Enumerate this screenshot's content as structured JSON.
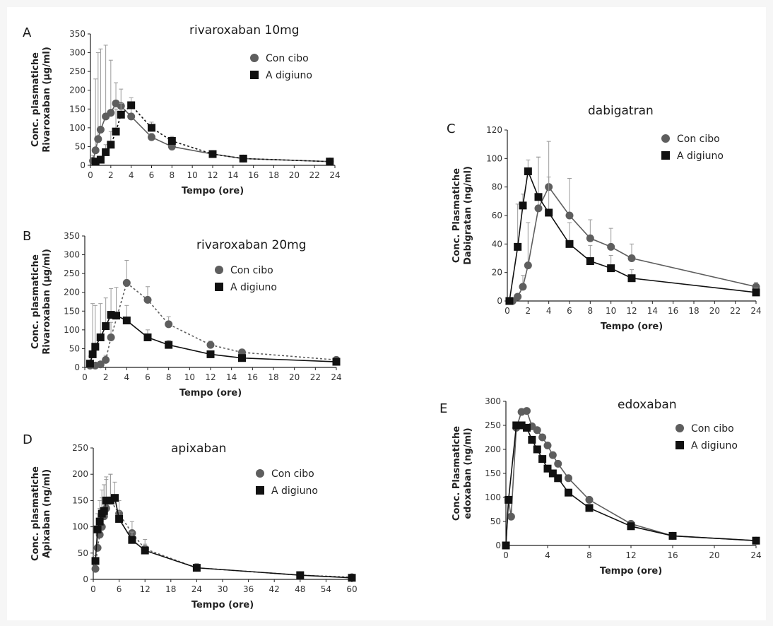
{
  "colors": {
    "con_cibo": "#5e5e5e",
    "a_digiuno": "#111111",
    "axis": "#222222",
    "errorbar": "#9a9a9a"
  },
  "chart_data": [
    {
      "panel": "A",
      "type": "line",
      "title": "rivaroxaban 10mg",
      "xlabel": "Tempo (ore)",
      "ylabel": [
        "Conc. plasmatiche",
        "Rivaroxaban (µg/ml)"
      ],
      "xlim": [
        0,
        24
      ],
      "ylim": [
        0,
        350
      ],
      "xticks": [
        0,
        2,
        4,
        6,
        8,
        10,
        12,
        14,
        16,
        18,
        20,
        22,
        24
      ],
      "yticks": [
        0,
        50,
        100,
        150,
        200,
        250,
        300,
        350
      ],
      "legend_position": "top-right",
      "series": [
        {
          "name": "Con cibo",
          "marker": "circle",
          "line": "solid",
          "x": [
            0.25,
            0.5,
            0.75,
            1,
            1.5,
            2,
            2.5,
            3,
            4,
            6,
            8,
            12,
            15,
            23.5
          ],
          "y": [
            12,
            40,
            70,
            95,
            130,
            140,
            165,
            158,
            130,
            75,
            50,
            30,
            18,
            10
          ],
          "err": [
            15,
            190,
            230,
            215,
            190,
            140,
            55,
            45,
            30,
            10,
            12,
            8,
            4,
            3
          ]
        },
        {
          "name": "A digiuno",
          "marker": "square",
          "line": "dashed",
          "x": [
            0.5,
            1,
            1.5,
            2,
            2.5,
            3,
            4,
            6,
            8,
            12,
            15,
            23.5
          ],
          "y": [
            10,
            15,
            35,
            55,
            90,
            135,
            160,
            100,
            65,
            30,
            18,
            10
          ],
          "err": [
            4,
            8,
            20,
            35,
            60,
            30,
            20,
            15,
            12,
            8,
            4,
            3
          ]
        }
      ]
    },
    {
      "panel": "B",
      "type": "line",
      "title": "rivaroxaban 20mg",
      "xlabel": "Tempo (ore)",
      "ylabel": [
        "Conc. plasmatiche",
        "Rivaroxaban (µg/ml)"
      ],
      "xlim": [
        0,
        24
      ],
      "ylim": [
        0,
        350
      ],
      "xticks": [
        0,
        2,
        4,
        6,
        8,
        10,
        12,
        14,
        16,
        18,
        20,
        22,
        24
      ],
      "yticks": [
        0,
        50,
        100,
        150,
        200,
        250,
        300,
        350
      ],
      "legend_position": "top-right",
      "series": [
        {
          "name": "Con cibo",
          "marker": "circle",
          "line": "dashed",
          "x": [
            0.5,
            1,
            1.5,
            2,
            2.5,
            4,
            6,
            8,
            12,
            15,
            24
          ],
          "y": [
            5,
            5,
            8,
            20,
            80,
            225,
            180,
            115,
            60,
            40,
            20
          ],
          "err": [
            3,
            4,
            6,
            12,
            40,
            60,
            35,
            20,
            10,
            6,
            3
          ]
        },
        {
          "name": "A digiuno",
          "marker": "square",
          "line": "solid",
          "x": [
            0.5,
            0.75,
            1,
            1.5,
            2,
            2.5,
            3,
            4,
            6,
            8,
            12,
            15,
            24
          ],
          "y": [
            10,
            35,
            55,
            80,
            110,
            140,
            138,
            125,
            80,
            60,
            35,
            25,
            15
          ],
          "err": [
            20,
            135,
            110,
            90,
            75,
            70,
            75,
            40,
            20,
            12,
            8,
            5,
            3
          ]
        }
      ]
    },
    {
      "panel": "C",
      "type": "line",
      "title": "dabigatran",
      "xlabel": "Tempo (ore)",
      "ylabel": [
        "Conc. Plasmatiche",
        "Dabigratan (ng/ml)"
      ],
      "xlim": [
        0,
        24
      ],
      "ylim": [
        0,
        120
      ],
      "xticks": [
        0,
        2,
        4,
        6,
        8,
        10,
        12,
        14,
        16,
        18,
        20,
        22,
        24
      ],
      "yticks": [
        0,
        20,
        40,
        60,
        80,
        100,
        120
      ],
      "legend_position": "top-right",
      "series": [
        {
          "name": "Con cibo",
          "marker": "circle",
          "line": "solid",
          "x": [
            0.2,
            0.5,
            1,
            1.5,
            2,
            3,
            4,
            6,
            8,
            10,
            12,
            24
          ],
          "y": [
            0,
            0,
            3,
            10,
            25,
            65,
            80,
            60,
            44,
            38,
            30,
            10
          ],
          "err": [
            0,
            0,
            2,
            8,
            30,
            36,
            32,
            26,
            13,
            13,
            10,
            3
          ]
        },
        {
          "name": "A digiuno",
          "marker": "square",
          "line": "solid",
          "x": [
            0.2,
            1,
            1.5,
            2,
            3,
            4,
            6,
            8,
            10,
            12,
            24
          ],
          "y": [
            0,
            38,
            67,
            91,
            73,
            62,
            40,
            28,
            23,
            16,
            6
          ],
          "err": [
            0,
            30,
            8,
            8,
            28,
            25,
            15,
            11,
            9,
            6,
            3
          ]
        }
      ]
    },
    {
      "panel": "D",
      "type": "line",
      "title": "apixaban",
      "xlabel": "Tempo (ore)",
      "ylabel": [
        "Conc. plasmatiche",
        "Apixaban (ng/ml)"
      ],
      "xlim": [
        0,
        60
      ],
      "ylim": [
        0,
        250
      ],
      "xticks": [
        0,
        6,
        12,
        18,
        24,
        30,
        36,
        42,
        48,
        54,
        60
      ],
      "yticks": [
        0,
        50,
        100,
        150,
        200,
        250
      ],
      "legend_position": "top-right",
      "series": [
        {
          "name": "Con cibo",
          "marker": "circle",
          "line": "dashed",
          "x": [
            0.5,
            1,
            1.5,
            2,
            2.5,
            3,
            4,
            6,
            9,
            12,
            24,
            48,
            60
          ],
          "y": [
            20,
            60,
            85,
            100,
            120,
            135,
            150,
            125,
            88,
            58,
            22,
            8,
            4
          ],
          "err": [
            8,
            40,
            50,
            55,
            60,
            55,
            50,
            25,
            22,
            18,
            8,
            3,
            2
          ]
        },
        {
          "name": "A digiuno",
          "marker": "square",
          "line": "solid",
          "x": [
            0.5,
            1,
            1.5,
            2,
            2.5,
            3,
            4,
            5,
            6,
            9,
            12,
            24,
            48,
            60
          ],
          "y": [
            35,
            95,
            110,
            125,
            130,
            150,
            150,
            155,
            115,
            75,
            55,
            22,
            8,
            3
          ],
          "err": [
            10,
            30,
            40,
            45,
            50,
            45,
            50,
            30,
            15,
            15,
            12,
            8,
            3,
            2
          ]
        }
      ]
    },
    {
      "panel": "E",
      "type": "line",
      "title": "edoxaban",
      "xlabel": "Tempo (ore)",
      "ylabel": [
        "Conc. Plasmatiche",
        "edoxaban (ng/ml)"
      ],
      "xlim": [
        0,
        24
      ],
      "ylim": [
        0,
        300
      ],
      "xticks": [
        0,
        4,
        8,
        12,
        16,
        20,
        24
      ],
      "yticks": [
        0,
        50,
        100,
        150,
        200,
        250,
        300
      ],
      "legend_position": "top-right",
      "series": [
        {
          "name": "Con cibo",
          "marker": "circle",
          "line": "solid",
          "x": [
            0,
            0.25,
            0.5,
            1,
            1.5,
            2,
            2.5,
            3,
            3.5,
            4,
            4.5,
            5,
            6,
            8,
            12,
            16,
            24
          ],
          "y": [
            0,
            95,
            60,
            245,
            278,
            280,
            248,
            240,
            225,
            208,
            188,
            170,
            140,
            95,
            45,
            20,
            10
          ]
        },
        {
          "name": "A digiuno",
          "marker": "square",
          "line": "solid",
          "x": [
            0,
            0.25,
            1,
            1.5,
            2,
            2.5,
            3,
            3.5,
            4,
            4.5,
            5,
            6,
            8,
            12,
            16,
            24
          ],
          "y": [
            0,
            95,
            250,
            250,
            245,
            220,
            200,
            180,
            160,
            150,
            140,
            110,
            78,
            40,
            20,
            10
          ]
        }
      ]
    }
  ]
}
